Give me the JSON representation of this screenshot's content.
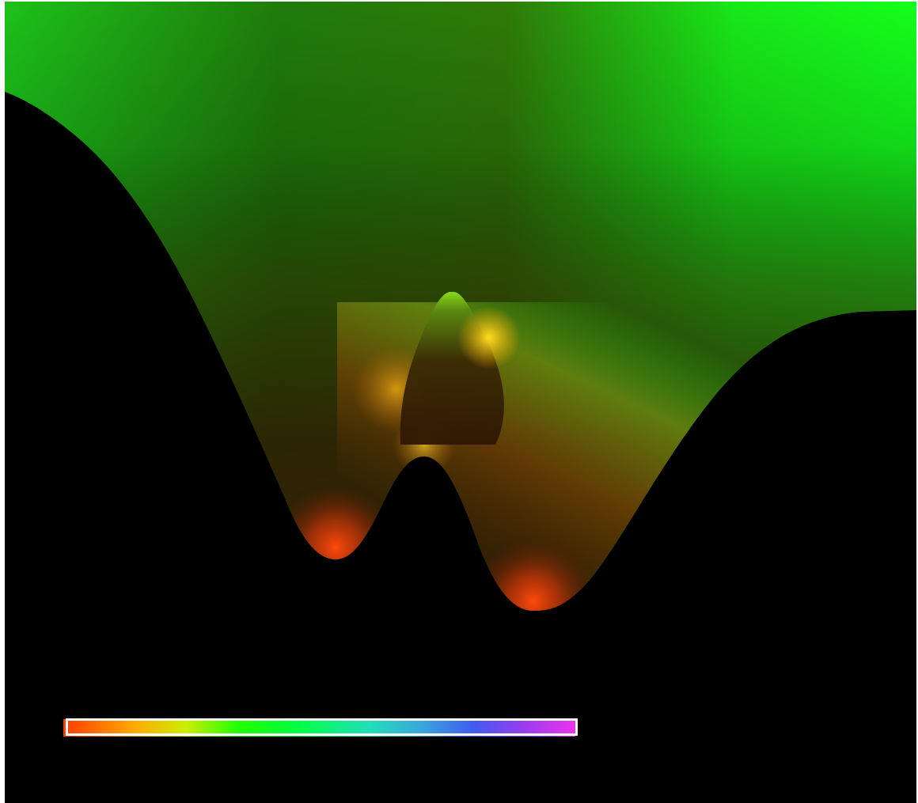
{
  "scene": {
    "background_color": "#000000",
    "frame_color": "#ffffff"
  },
  "surface": {
    "description_colors": {
      "top_right": "#14ff1c",
      "top_center": "#1a7a08",
      "mid_dark": "#2e1e02",
      "low_dark": "#2f1402",
      "left_minimum_highlight": "#ff4a0a",
      "right_minimum_highlight": "#ff4a0a",
      "central_peak_tip": "#8ee21a",
      "peak_glow": "#ffd21a",
      "right_wing_yellowgreen": "#9ec21a"
    }
  },
  "colorbar": {
    "orientation": "horizontal",
    "border_color": "#ffffff",
    "stops": [
      "#ff3c00",
      "#ffaa00",
      "#ccee00",
      "#22ff00",
      "#00ff44",
      "#22ddbb",
      "#3aa6dd",
      "#3f5cf0",
      "#9a3cf0",
      "#ee33ee"
    ]
  }
}
